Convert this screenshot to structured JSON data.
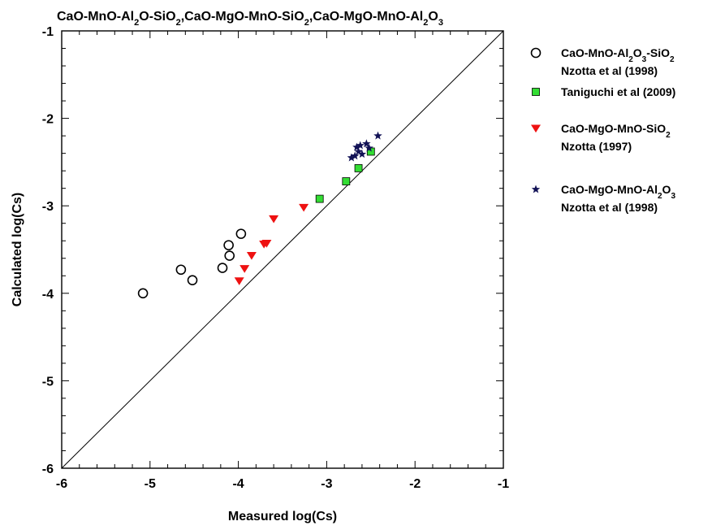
{
  "chart_data": {
    "type": "scatter",
    "title_parts": [
      {
        "text": "CaO-MnO-Al",
        "sub": false
      },
      {
        "text": "2",
        "sub": true
      },
      {
        "text": "O-SiO",
        "sub": false
      },
      {
        "text": "2",
        "sub": true
      },
      {
        "text": ",CaO-MgO-MnO-SiO",
        "sub": false
      },
      {
        "text": "2",
        "sub": true
      },
      {
        "text": ",CaO-MgO-MnO-Al",
        "sub": false
      },
      {
        "text": "2",
        "sub": true
      },
      {
        "text": "O",
        "sub": false
      },
      {
        "text": "3",
        "sub": true
      }
    ],
    "xlabel": "Measured log(Cs)",
    "ylabel": "Calculated log(Cs)",
    "xlim": [
      -6,
      -1
    ],
    "ylim": [
      -6,
      -1
    ],
    "x_ticks": [
      -6,
      -5,
      -4,
      -3,
      -2,
      -1
    ],
    "y_ticks": [
      -6,
      -5,
      -4,
      -3,
      -2,
      -1
    ],
    "grid": false,
    "legend_position": "right",
    "reference_line": {
      "from": [
        -6,
        -6
      ],
      "to": [
        -1,
        -1
      ]
    },
    "series": [
      {
        "marker": "circle-open",
        "color": "#000000",
        "legend_lines": [
          [
            {
              "text": "CaO-MnO-Al",
              "sub": false
            },
            {
              "text": "2",
              "sub": true
            },
            {
              "text": "O",
              "sub": false
            },
            {
              "text": "3",
              "sub": true
            },
            {
              "text": "-SiO",
              "sub": false
            },
            {
              "text": "2",
              "sub": true
            }
          ],
          [
            {
              "text": "Nzotta et al (1998)",
              "sub": false
            }
          ]
        ],
        "points": [
          [
            -5.08,
            -4.0
          ],
          [
            -4.65,
            -3.73
          ],
          [
            -4.52,
            -3.85
          ],
          [
            -4.18,
            -3.71
          ],
          [
            -4.11,
            -3.45
          ],
          [
            -4.1,
            -3.57
          ],
          [
            -3.97,
            -3.32
          ]
        ]
      },
      {
        "marker": "square",
        "color": "#33dd33",
        "legend_lines": [
          [
            {
              "text": "Taniguchi et al (2009)",
              "sub": false
            }
          ]
        ],
        "points": [
          [
            -3.08,
            -2.92
          ],
          [
            -2.78,
            -2.72
          ],
          [
            -2.64,
            -2.57
          ],
          [
            -2.5,
            -2.38
          ]
        ]
      },
      {
        "marker": "triangle-down",
        "color": "#ee1111",
        "legend_lines": [
          [
            {
              "text": "CaO-MgO-MnO-SiO",
              "sub": false
            },
            {
              "text": "2",
              "sub": true
            }
          ],
          [
            {
              "text": "Nzotta (1997)",
              "sub": false
            }
          ]
        ],
        "points": [
          [
            -3.99,
            -3.86
          ],
          [
            -3.93,
            -3.72
          ],
          [
            -3.85,
            -3.57
          ],
          [
            -3.71,
            -3.44
          ],
          [
            -3.68,
            -3.43
          ],
          [
            -3.6,
            -3.15
          ],
          [
            -3.26,
            -3.02
          ]
        ]
      },
      {
        "marker": "star",
        "color": "#111155",
        "legend_lines": [
          [
            {
              "text": "CaO-MgO-MnO-Al",
              "sub": false
            },
            {
              "text": "2",
              "sub": true
            },
            {
              "text": "O",
              "sub": false
            },
            {
              "text": "3",
              "sub": true
            }
          ],
          [
            {
              "text": "Nzotta et al (1998)",
              "sub": false
            }
          ]
        ],
        "points": [
          [
            -2.72,
            -2.45
          ],
          [
            -2.68,
            -2.43
          ],
          [
            -2.66,
            -2.33
          ],
          [
            -2.64,
            -2.38
          ],
          [
            -2.62,
            -2.31
          ],
          [
            -2.6,
            -2.41
          ],
          [
            -2.55,
            -2.29
          ],
          [
            -2.52,
            -2.34
          ],
          [
            -2.42,
            -2.2
          ]
        ]
      }
    ]
  }
}
